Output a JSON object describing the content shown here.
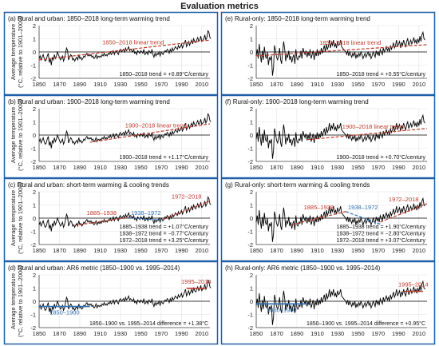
{
  "figure": {
    "title": "Evaluation metrics"
  },
  "colors": {
    "series": "#000000",
    "trend_red": "#c0392b",
    "trend_blue": "#2e6fb5",
    "zero_line": "#000000",
    "border": "#1f5fa8"
  },
  "chart_data": [
    {
      "id": "a",
      "type": "line",
      "title": "(a) Rural and urban: 1850–2018 long-term warming trend",
      "ylabel": "Average temperature (°C, relative to 1901–2000)",
      "xlim": [
        1850,
        2018
      ],
      "ylim": [
        -2,
        2
      ],
      "xticks": [
        1850,
        1870,
        1890,
        1910,
        1930,
        1950,
        1970,
        1990,
        2010
      ],
      "yticks": [
        -2,
        -1,
        0,
        1,
        2
      ],
      "series": "rural_urban",
      "trends": [
        {
          "label": "1850–2018 linear trend",
          "start": [
            1850,
            -0.6
          ],
          "end": [
            2018,
            0.9
          ],
          "color": "red"
        }
      ],
      "annotations": [
        "1850–2018 trend = +0.89°C/century"
      ]
    },
    {
      "id": "b",
      "type": "line",
      "title": "(b) Rural and urban: 1900–2018 long-term warming trend",
      "ylabel": "Average temperature (°C, relative to 1901–2000)",
      "xlim": [
        1850,
        2018
      ],
      "ylim": [
        -2,
        2
      ],
      "xticks": [
        1850,
        1870,
        1890,
        1910,
        1930,
        1950,
        1970,
        1990,
        2010
      ],
      "yticks": [
        -2,
        -1,
        0,
        1,
        2
      ],
      "series": "rural_urban",
      "trends": [
        {
          "label": "1900–2018 linear trend",
          "start": [
            1900,
            -0.55
          ],
          "end": [
            2018,
            0.85
          ],
          "color": "red"
        }
      ],
      "annotations": [
        "1900–2018 trend = +1.17°C/century"
      ]
    },
    {
      "id": "c",
      "type": "line",
      "title": "(c) Rural and urban: short-term warming & cooling trends",
      "ylabel": "Average temperature (°C, relative to 1901–2000)",
      "xlim": [
        1850,
        2018
      ],
      "ylim": [
        -2,
        2
      ],
      "xticks": [
        1850,
        1870,
        1890,
        1910,
        1930,
        1950,
        1970,
        1990,
        2010
      ],
      "yticks": [
        -2,
        -1,
        0,
        1,
        2
      ],
      "series": "rural_urban",
      "trends": [
        {
          "label": "1885–1938",
          "start": [
            1885,
            -0.55
          ],
          "end": [
            1938,
            0.05
          ],
          "color": "red"
        },
        {
          "label": "1938–1972",
          "start": [
            1938,
            0.05
          ],
          "end": [
            1972,
            -0.2
          ],
          "color": "blue"
        },
        {
          "label": "1972–2018",
          "start": [
            1972,
            -0.1
          ],
          "end": [
            2018,
            1.3
          ],
          "color": "red"
        }
      ],
      "annotations": [
        "1885–1938 trend = +1.07°C/century",
        "1938–1972 trend = −0.77°C/century",
        "1972–2018 trend = +3.25°C/century"
      ]
    },
    {
      "id": "d",
      "type": "line",
      "title": "(d) Rural and urban: AR6 metric (1850–1900 vs. 1995–2014)",
      "ylabel": "Average temperature (°C, relative to 1901–2000)",
      "xlim": [
        1850,
        2018
      ],
      "ylim": [
        -2,
        2
      ],
      "xticks": [
        1850,
        1870,
        1890,
        1910,
        1930,
        1950,
        1970,
        1990,
        2010
      ],
      "yticks": [
        -2,
        -1,
        0,
        1,
        2
      ],
      "series": "rural_urban",
      "periods": [
        {
          "label": "1850–1900",
          "range": [
            1850,
            1900
          ],
          "mean": -0.4,
          "color": "blue"
        },
        {
          "label": "1995–2014",
          "range": [
            1995,
            2014
          ],
          "mean": 0.98,
          "color": "red"
        }
      ],
      "annotations": [
        "1850–1900 vs. 1995–2014 difference = +1.38°C"
      ]
    },
    {
      "id": "e",
      "type": "line",
      "title": "(e) Rural-only: 1850–2018 long-term warming trend",
      "ylabel": "",
      "xlim": [
        1850,
        2018
      ],
      "ylim": [
        -2,
        2
      ],
      "xticks": [
        1850,
        1870,
        1890,
        1910,
        1930,
        1950,
        1970,
        1990,
        2010
      ],
      "yticks": [
        -2,
        -1,
        0,
        1,
        2
      ],
      "series": "rural_only",
      "trends": [
        {
          "label": "1850–2018 linear trend",
          "start": [
            1850,
            -0.3
          ],
          "end": [
            2018,
            0.55
          ],
          "color": "red"
        }
      ],
      "annotations": [
        "1850–2018 trend = +0.55°C/century"
      ]
    },
    {
      "id": "f",
      "type": "line",
      "title": "(f) Rural-only: 1900–2018 long-term warming trend",
      "ylabel": "",
      "xlim": [
        1850,
        2018
      ],
      "ylim": [
        -2,
        2
      ],
      "xticks": [
        1850,
        1870,
        1890,
        1910,
        1930,
        1950,
        1970,
        1990,
        2010
      ],
      "yticks": [
        -2,
        -1,
        0,
        1,
        2
      ],
      "series": "rural_only",
      "trends": [
        {
          "label": "1900–2018 linear trend",
          "start": [
            1900,
            -0.35
          ],
          "end": [
            2018,
            0.5
          ],
          "color": "red"
        }
      ],
      "annotations": [
        "1900–2018 trend = +0.70°C/century"
      ]
    },
    {
      "id": "g",
      "type": "line",
      "title": "(g) Rural-only: short-term warming & cooling trends",
      "ylabel": "",
      "xlim": [
        1850,
        2018
      ],
      "ylim": [
        -2,
        2
      ],
      "xticks": [
        1850,
        1870,
        1890,
        1910,
        1930,
        1950,
        1970,
        1990,
        2010
      ],
      "yticks": [
        -2,
        -1,
        0,
        1,
        2
      ],
      "series": "rural_only",
      "trends": [
        {
          "label": "1885–1938",
          "start": [
            1885,
            -0.5
          ],
          "end": [
            1938,
            0.5
          ],
          "color": "red"
        },
        {
          "label": "1938–1972",
          "start": [
            1938,
            0.5
          ],
          "end": [
            1972,
            -0.45
          ],
          "color": "blue"
        },
        {
          "label": "1972–2018",
          "start": [
            1972,
            -0.3
          ],
          "end": [
            2018,
            1.1
          ],
          "color": "red"
        }
      ],
      "annotations": [
        "1885–1938 trend = +1.90°C/century",
        "1938–1972 trend = −2.80°C/century",
        "1972–2018 trend = +3.07°C/century"
      ]
    },
    {
      "id": "h",
      "type": "line",
      "title": "(h) Rural-only: AR6 metric (1850–1900 vs. 1995–2014)",
      "ylabel": "",
      "xlim": [
        1850,
        2018
      ],
      "ylim": [
        -2,
        2
      ],
      "xticks": [
        1850,
        1870,
        1890,
        1910,
        1930,
        1950,
        1970,
        1990,
        2010
      ],
      "yticks": [
        -2,
        -1,
        0,
        1,
        2
      ],
      "series": "rural_only",
      "periods": [
        {
          "label": "1850–1900",
          "range": [
            1850,
            1900
          ],
          "mean": -0.2,
          "color": "blue"
        },
        {
          "label": "1995–2014",
          "range": [
            1995,
            2014
          ],
          "mean": 0.75,
          "color": "red"
        }
      ],
      "annotations": [
        "1850–1900 vs. 1995–2014 difference = +0.95°C"
      ]
    }
  ],
  "series_data": {
    "years_start": 1850,
    "rural_urban": [
      -0.5,
      -0.3,
      -0.6,
      -0.4,
      -0.2,
      -0.5,
      -0.7,
      -0.6,
      -0.3,
      -0.1,
      -0.8,
      -0.5,
      -1.0,
      -0.4,
      -0.6,
      -0.2,
      -0.5,
      -0.3,
      0.0,
      -0.2,
      -0.4,
      -0.6,
      -0.5,
      -0.3,
      -0.7,
      -0.5,
      -0.1,
      0.3,
      0.1,
      -0.6,
      -0.4,
      -0.2,
      -0.3,
      -0.6,
      -0.5,
      -0.7,
      -0.5,
      -0.4,
      -0.6,
      -0.2,
      -0.5,
      -0.4,
      -0.6,
      -0.5,
      -0.3,
      -0.4,
      -0.2,
      -0.1,
      -0.3,
      -0.2,
      -0.3,
      -0.2,
      -0.4,
      -0.3,
      -0.5,
      -0.4,
      -0.2,
      -0.5,
      -0.3,
      -0.4,
      -0.3,
      -0.4,
      -0.2,
      -0.3,
      -0.1,
      -0.3,
      -0.2,
      -0.3,
      -0.1,
      -0.2,
      0.0,
      -0.2,
      -0.1,
      0.1,
      -0.2,
      0.0,
      0.1,
      -0.1,
      -0.2,
      0.1,
      0.2,
      0.0,
      0.1,
      0.2,
      0.0,
      0.3,
      0.1,
      0.2,
      0.4,
      0.1,
      0.2,
      0.1,
      0.0,
      0.2,
      -0.1,
      0.0,
      -0.2,
      0.1,
      0.0,
      -0.1,
      0.1,
      0.0,
      -0.1,
      0.2,
      -0.2,
      -0.1,
      0.0,
      -0.2,
      0.1,
      0.0,
      -0.1,
      0.2,
      -0.2,
      -0.4,
      -0.1,
      -0.3,
      -0.1,
      -0.2,
      0.0,
      -0.3,
      0.0,
      -0.1,
      -0.2,
      0.0,
      0.1,
      0.0,
      0.2,
      0.1,
      -0.1,
      0.2,
      0.0,
      0.3,
      0.1,
      0.2,
      0.4,
      0.3,
      0.2,
      0.5,
      0.3,
      0.4,
      0.6,
      0.3,
      0.5,
      0.7,
      0.9,
      0.4,
      0.6,
      0.8,
      0.5,
      0.7,
      0.9,
      0.6,
      1.0,
      0.8,
      0.7,
      0.9,
      1.1,
      0.8,
      0.9,
      1.2,
      0.8,
      0.9,
      1.0,
      1.3,
      0.9,
      1.1,
      1.6,
      1.5,
      1.1,
      1.0
    ],
    "rural_only": [
      -0.3,
      0.2,
      -0.5,
      0.6,
      -0.2,
      -0.8,
      0.1,
      -0.6,
      0.4,
      -0.3,
      -0.5,
      0.0,
      -1.0,
      -0.4,
      -0.6,
      -0.3,
      -1.8,
      -1.2,
      0.5,
      0.1,
      -0.4,
      -0.6,
      -0.3,
      0.3,
      -0.6,
      -0.9,
      0.0,
      0.8,
      0.2,
      -0.7,
      -0.2,
      -0.4,
      0.1,
      -0.6,
      -0.3,
      -0.8,
      -0.4,
      -0.2,
      -0.9,
      0.2,
      -0.5,
      -0.6,
      -0.3,
      -0.4,
      0.1,
      -0.5,
      0.3,
      0.0,
      -0.2,
      0.1,
      -0.4,
      0.0,
      -0.3,
      0.2,
      -0.5,
      -0.2,
      0.1,
      -0.6,
      0.0,
      -0.3,
      0.2,
      -0.3,
      0.1,
      -0.2,
      0.3,
      -0.1,
      0.2,
      0.5,
      0.0,
      0.6,
      0.2,
      0.4,
      0.9,
      0.3,
      0.7,
      0.5,
      0.9,
      0.4,
      0.6,
      0.3,
      0.8,
      0.5,
      0.6,
      0.9,
      0.4,
      0.3,
      0.2,
      0.1,
      0.0,
      -0.2,
      0.1,
      -0.3,
      0.0,
      -0.2,
      -0.4,
      -0.1,
      -0.3,
      0.0,
      -0.5,
      -0.2,
      -0.4,
      -0.1,
      -0.3,
      0.0,
      -0.2,
      -0.5,
      -0.3,
      -0.1,
      -0.4,
      -0.2,
      0.0,
      -0.3,
      -0.1,
      -0.5,
      -0.3,
      0.0,
      -0.2,
      -0.4,
      0.1,
      -0.2,
      0.0,
      -0.3,
      0.2,
      0.0,
      -0.2,
      0.3,
      0.0,
      0.2,
      0.4,
      0.1,
      0.3,
      0.0,
      0.5,
      0.2,
      0.4,
      0.7,
      0.3,
      0.5,
      0.9,
      0.4,
      0.6,
      0.8,
      0.3,
      0.7,
      0.5,
      0.9,
      0.6,
      0.4,
      0.8,
      1.0,
      0.5,
      0.7,
      0.9,
      0.6,
      0.8,
      1.1,
      0.7,
      0.9,
      0.6,
      1.0,
      0.7,
      1.2,
      0.8,
      1.3,
      1.5,
      1.0,
      0.9
    ]
  }
}
